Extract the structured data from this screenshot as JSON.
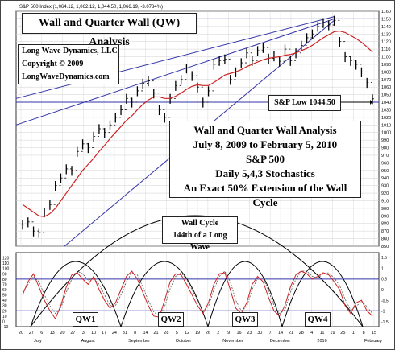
{
  "header": {
    "legend_text": "S&P 500 Index (1,064.12, 1,062.12, 1,044.50, 1,066.19, -3.0784%)"
  },
  "annotations": {
    "title": "Wall and Quarter Wall (QW) Analysis",
    "copyright_lines": [
      "Long Wave Dynamics, LLC",
      "Copyright © 2009",
      "LongWaveDynamics.com"
    ],
    "low_label": "S&P Low 1044.50",
    "info_lines": [
      "Wall and Quarter Wall Analysis",
      "July 8, 2009 to February 5, 2010",
      "S&P 500",
      "Daily 5,4,3 Stochastics",
      "An Exact 50% Extension of the Wall Cycle"
    ],
    "wave_lines": [
      "Wall Cycle",
      "144th of a Long Wave"
    ],
    "qw_labels": [
      "QW1",
      "QW2",
      "QW3",
      "QW4"
    ]
  },
  "colors": {
    "price_bars": "#000000",
    "moving_average": "#cc2222",
    "trend_lines": "#3333aa",
    "stoch_fast": "#cc2222",
    "stoch_slow": "#555555",
    "grid": "#d0d0d0",
    "level_lines": "#3333aa"
  },
  "chart_data": [
    {
      "type": "line",
      "title": "",
      "ylabel": "",
      "ylim": [
        850,
        1160
      ],
      "y_ticks": [
        850,
        860,
        870,
        880,
        890,
        900,
        910,
        920,
        930,
        940,
        950,
        960,
        970,
        980,
        990,
        1000,
        1010,
        1020,
        1030,
        1040,
        1050,
        1060,
        1070,
        1080,
        1090,
        1100,
        1110,
        1120,
        1130,
        1140,
        1150,
        1160
      ],
      "month_labels": [
        "July",
        "August",
        "September",
        "October",
        "November",
        "December",
        "2010",
        "February"
      ],
      "x_tick_labels": [
        "20",
        "27",
        "6",
        "13",
        "20",
        "27",
        "3",
        "10",
        "17",
        "24",
        "31",
        "8",
        "14",
        "21",
        "28",
        "5",
        "12",
        "19",
        "26",
        "2",
        "9",
        "16",
        "23",
        "30",
        "7",
        "14",
        "21",
        "28",
        "4",
        "11",
        "19",
        "25",
        "1",
        "8",
        "15"
      ],
      "grid": true,
      "horizontal_levels": [
        1150,
        1040
      ],
      "series": [
        {
          "role": "price",
          "values": [
            879,
            882,
            870,
            868,
            895,
            905,
            930,
            940,
            952,
            950,
            975,
            985,
            980,
            995,
            1005,
            1000,
            1010,
            1020,
            1030,
            1045,
            1040,
            1055,
            1065,
            1068,
            1052,
            1030,
            1020,
            1045,
            1062,
            1070,
            1085,
            1075,
            1060,
            1040,
            1055,
            1090,
            1095,
            1097,
            1070,
            1080,
            1092,
            1105,
            1095,
            1108,
            1112,
            1098,
            1101,
            1094,
            1110,
            1095,
            1105,
            1115,
            1125,
            1130,
            1140,
            1145,
            1142,
            1148,
            1120,
            1100,
            1095,
            1090,
            1080,
            1066,
            1044.5
          ]
        },
        {
          "role": "moving-average",
          "values": [
            905,
            900,
            895,
            890,
            889,
            893,
            900,
            910,
            920,
            930,
            940,
            950,
            958,
            966,
            975,
            983,
            992,
            1000,
            1008,
            1016,
            1022,
            1030,
            1037,
            1043,
            1047,
            1047,
            1045,
            1045,
            1048,
            1052,
            1057,
            1061,
            1063,
            1062,
            1062,
            1066,
            1071,
            1076,
            1078,
            1080,
            1083,
            1087,
            1090,
            1093,
            1096,
            1098,
            1099,
            1100,
            1102,
            1103,
            1105,
            1108,
            1111,
            1115,
            1120,
            1125,
            1129,
            1133,
            1134,
            1132,
            1128,
            1124,
            1119,
            1113,
            1106
          ]
        }
      ]
    },
    {
      "type": "line",
      "title": "",
      "ylabel": "",
      "ylim": [
        -10,
        130
      ],
      "y_ticks_left": [
        120,
        110,
        100,
        90,
        80,
        70,
        60,
        50,
        40,
        30,
        20,
        10,
        0,
        -10
      ],
      "y_ticks_right": [
        1.5,
        1.0,
        0.5,
        0.0,
        -0.5,
        -1.0,
        -1.5
      ],
      "horizontal_levels": [
        80,
        20
      ],
      "series": [
        {
          "role": "stochastic-fast",
          "values": [
            50,
            75,
            90,
            65,
            40,
            20,
            5,
            30,
            65,
            88,
            92,
            80,
            70,
            85,
            60,
            40,
            25,
            35,
            60,
            85,
            95,
            80,
            55,
            30,
            10,
            8,
            40,
            75,
            90,
            88,
            70,
            50,
            30,
            15,
            35,
            70,
            90,
            92,
            60,
            25,
            15,
            35,
            70,
            85,
            75,
            45,
            20,
            10,
            30,
            65,
            88,
            95,
            90,
            80,
            85,
            92,
            88,
            75,
            60,
            30,
            15,
            35,
            40,
            20,
            10
          ]
        },
        {
          "role": "stochastic-slow",
          "values": [
            55,
            70,
            85,
            75,
            50,
            30,
            15,
            25,
            55,
            80,
            95,
            90,
            78,
            82,
            70,
            50,
            30,
            30,
            50,
            75,
            92,
            88,
            65,
            40,
            18,
            10,
            28,
            62,
            85,
            92,
            80,
            60,
            40,
            20,
            28,
            60,
            85,
            95,
            75,
            40,
            20,
            28,
            60,
            82,
            82,
            58,
            30,
            15,
            22,
            55,
            80,
            95,
            95,
            85,
            82,
            90,
            92,
            82,
            68,
            42,
            22,
            28,
            38,
            28,
            15
          ]
        }
      ]
    }
  ]
}
